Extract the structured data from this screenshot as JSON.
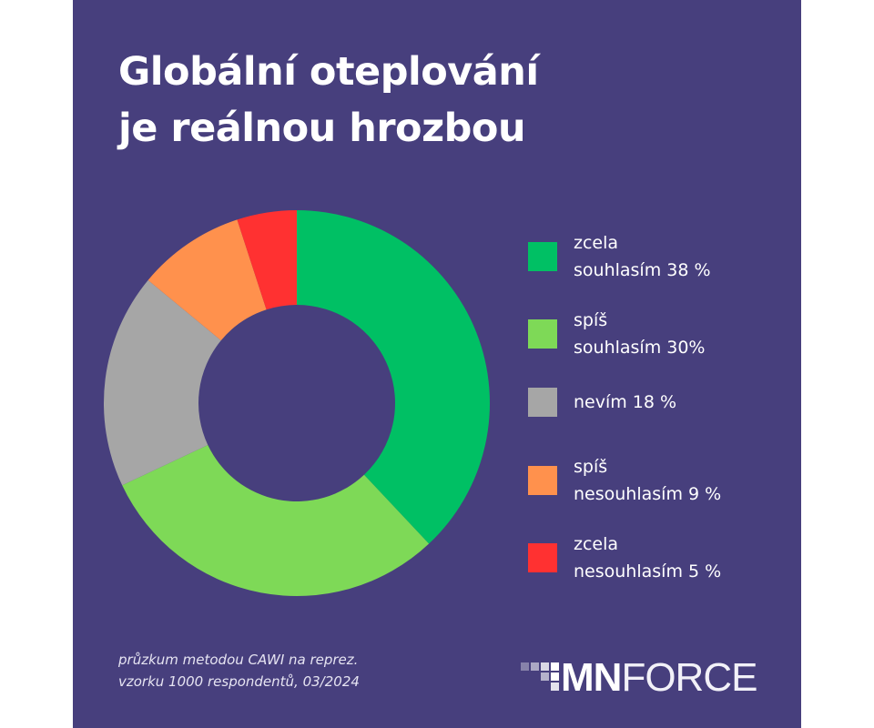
{
  "title": {
    "line1": "Globální oteplování",
    "line2": "je reálnou hrozbou"
  },
  "chart_data": {
    "type": "pie",
    "variant": "donut",
    "categories": [
      "zcela souhlasím",
      "spíš souhlasím",
      "nevím",
      "spíš nesouhlasím",
      "zcela nesouhlasím"
    ],
    "values": [
      38,
      30,
      18,
      9,
      5
    ],
    "unit": "%",
    "colors": [
      "#00c064",
      "#7ed957",
      "#a6a6a6",
      "#ff914d",
      "#ff3131"
    ],
    "legend_position": "right"
  },
  "legend": [
    {
      "line1": "zcela",
      "line2": "souhlasím 38 %",
      "color": "#00c064"
    },
    {
      "line1": "spíš",
      "line2": "souhlasím 30%",
      "color": "#7ed957"
    },
    {
      "line1": "nevím 18 %",
      "line2": "",
      "color": "#a6a6a6"
    },
    {
      "line1": "spíš",
      "line2": "nesouhlasím 9 %",
      "color": "#ff914d"
    },
    {
      "line1": "zcela",
      "line2": "nesouhlasím 5 %",
      "color": "#ff3131"
    }
  ],
  "footer": {
    "line1": "průzkum metodou CAWI na reprez.",
    "line2": "vzorku 1000 respondentů, 03/2024"
  },
  "logo": {
    "bold": "MN",
    "thin": "FORCE"
  },
  "colors": {
    "background": "#473f7d",
    "text": "#ffffff"
  }
}
